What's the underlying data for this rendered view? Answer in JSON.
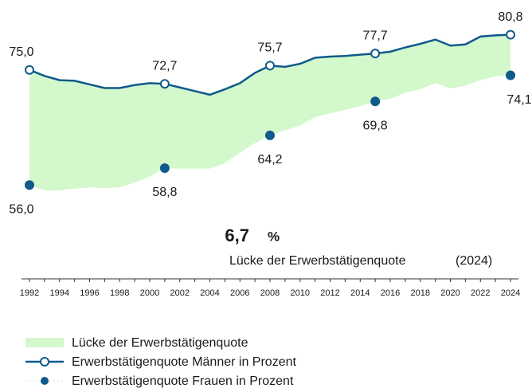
{
  "chart_data": {
    "type": "line",
    "x": [
      1992,
      1993,
      1994,
      1995,
      1996,
      1997,
      1998,
      1999,
      2000,
      2001,
      2002,
      2003,
      2004,
      2005,
      2006,
      2007,
      2008,
      2009,
      2010,
      2011,
      2012,
      2013,
      2014,
      2015,
      2016,
      2017,
      2018,
      2019,
      2020,
      2021,
      2022,
      2023,
      2024
    ],
    "xlim": [
      1992,
      2024
    ],
    "xticks": [
      1992,
      1994,
      1996,
      1998,
      2000,
      2002,
      2004,
      2006,
      2008,
      2010,
      2012,
      2014,
      2016,
      2018,
      2020,
      2022,
      2024
    ],
    "ylim": [
      40,
      86
    ],
    "area": {
      "name": "Lücke der Erwerbstätigenquote",
      "color": "#d3f8cc"
    },
    "series": [
      {
        "name": "Erwerbstätigenquote Männer in Prozent",
        "color": "#0f5a8a",
        "values": [
          75.0,
          74.0,
          73.3,
          73.2,
          72.6,
          72.0,
          72.0,
          72.5,
          72.8,
          72.7,
          72.1,
          71.5,
          70.9,
          71.8,
          72.8,
          74.5,
          75.7,
          75.5,
          76.0,
          77.0,
          77.2,
          77.3,
          77.5,
          77.7,
          78.0,
          78.7,
          79.3,
          80.0,
          79.0,
          79.2,
          80.5,
          80.7,
          80.8
        ],
        "value_labels": [
          "75,0",
          null,
          null,
          null,
          null,
          null,
          null,
          null,
          null,
          "72,7",
          null,
          null,
          null,
          null,
          null,
          null,
          "75,7",
          null,
          null,
          null,
          null,
          null,
          null,
          "77,7",
          null,
          null,
          null,
          null,
          null,
          null,
          null,
          null,
          "80,8"
        ]
      },
      {
        "name": "Erwerbstätigenquote Frauen in Prozent",
        "color": "#0f5a8a",
        "values": [
          56.0,
          55.1,
          55.1,
          55.4,
          55.6,
          55.5,
          55.6,
          56.4,
          57.4,
          58.8,
          58.7,
          58.7,
          58.7,
          59.6,
          61.3,
          62.9,
          64.2,
          65.0,
          65.8,
          67.2,
          67.8,
          68.4,
          69.0,
          69.8,
          70.2,
          71.2,
          71.8,
          72.8,
          71.9,
          72.4,
          73.3,
          73.9,
          74.1
        ],
        "value_labels": [
          "56,0",
          null,
          null,
          null,
          null,
          null,
          null,
          null,
          null,
          "58,8",
          null,
          null,
          null,
          null,
          null,
          null,
          "64,2",
          null,
          null,
          null,
          null,
          null,
          null,
          "69,8",
          null,
          null,
          null,
          null,
          null,
          null,
          null,
          null,
          "74,1"
        ]
      }
    ],
    "annotation": {
      "value": 6.7,
      "label": "6,7",
      "unit": "%",
      "text": "Lücke der Erwerbstätigenquote",
      "year": "(2024)"
    }
  }
}
